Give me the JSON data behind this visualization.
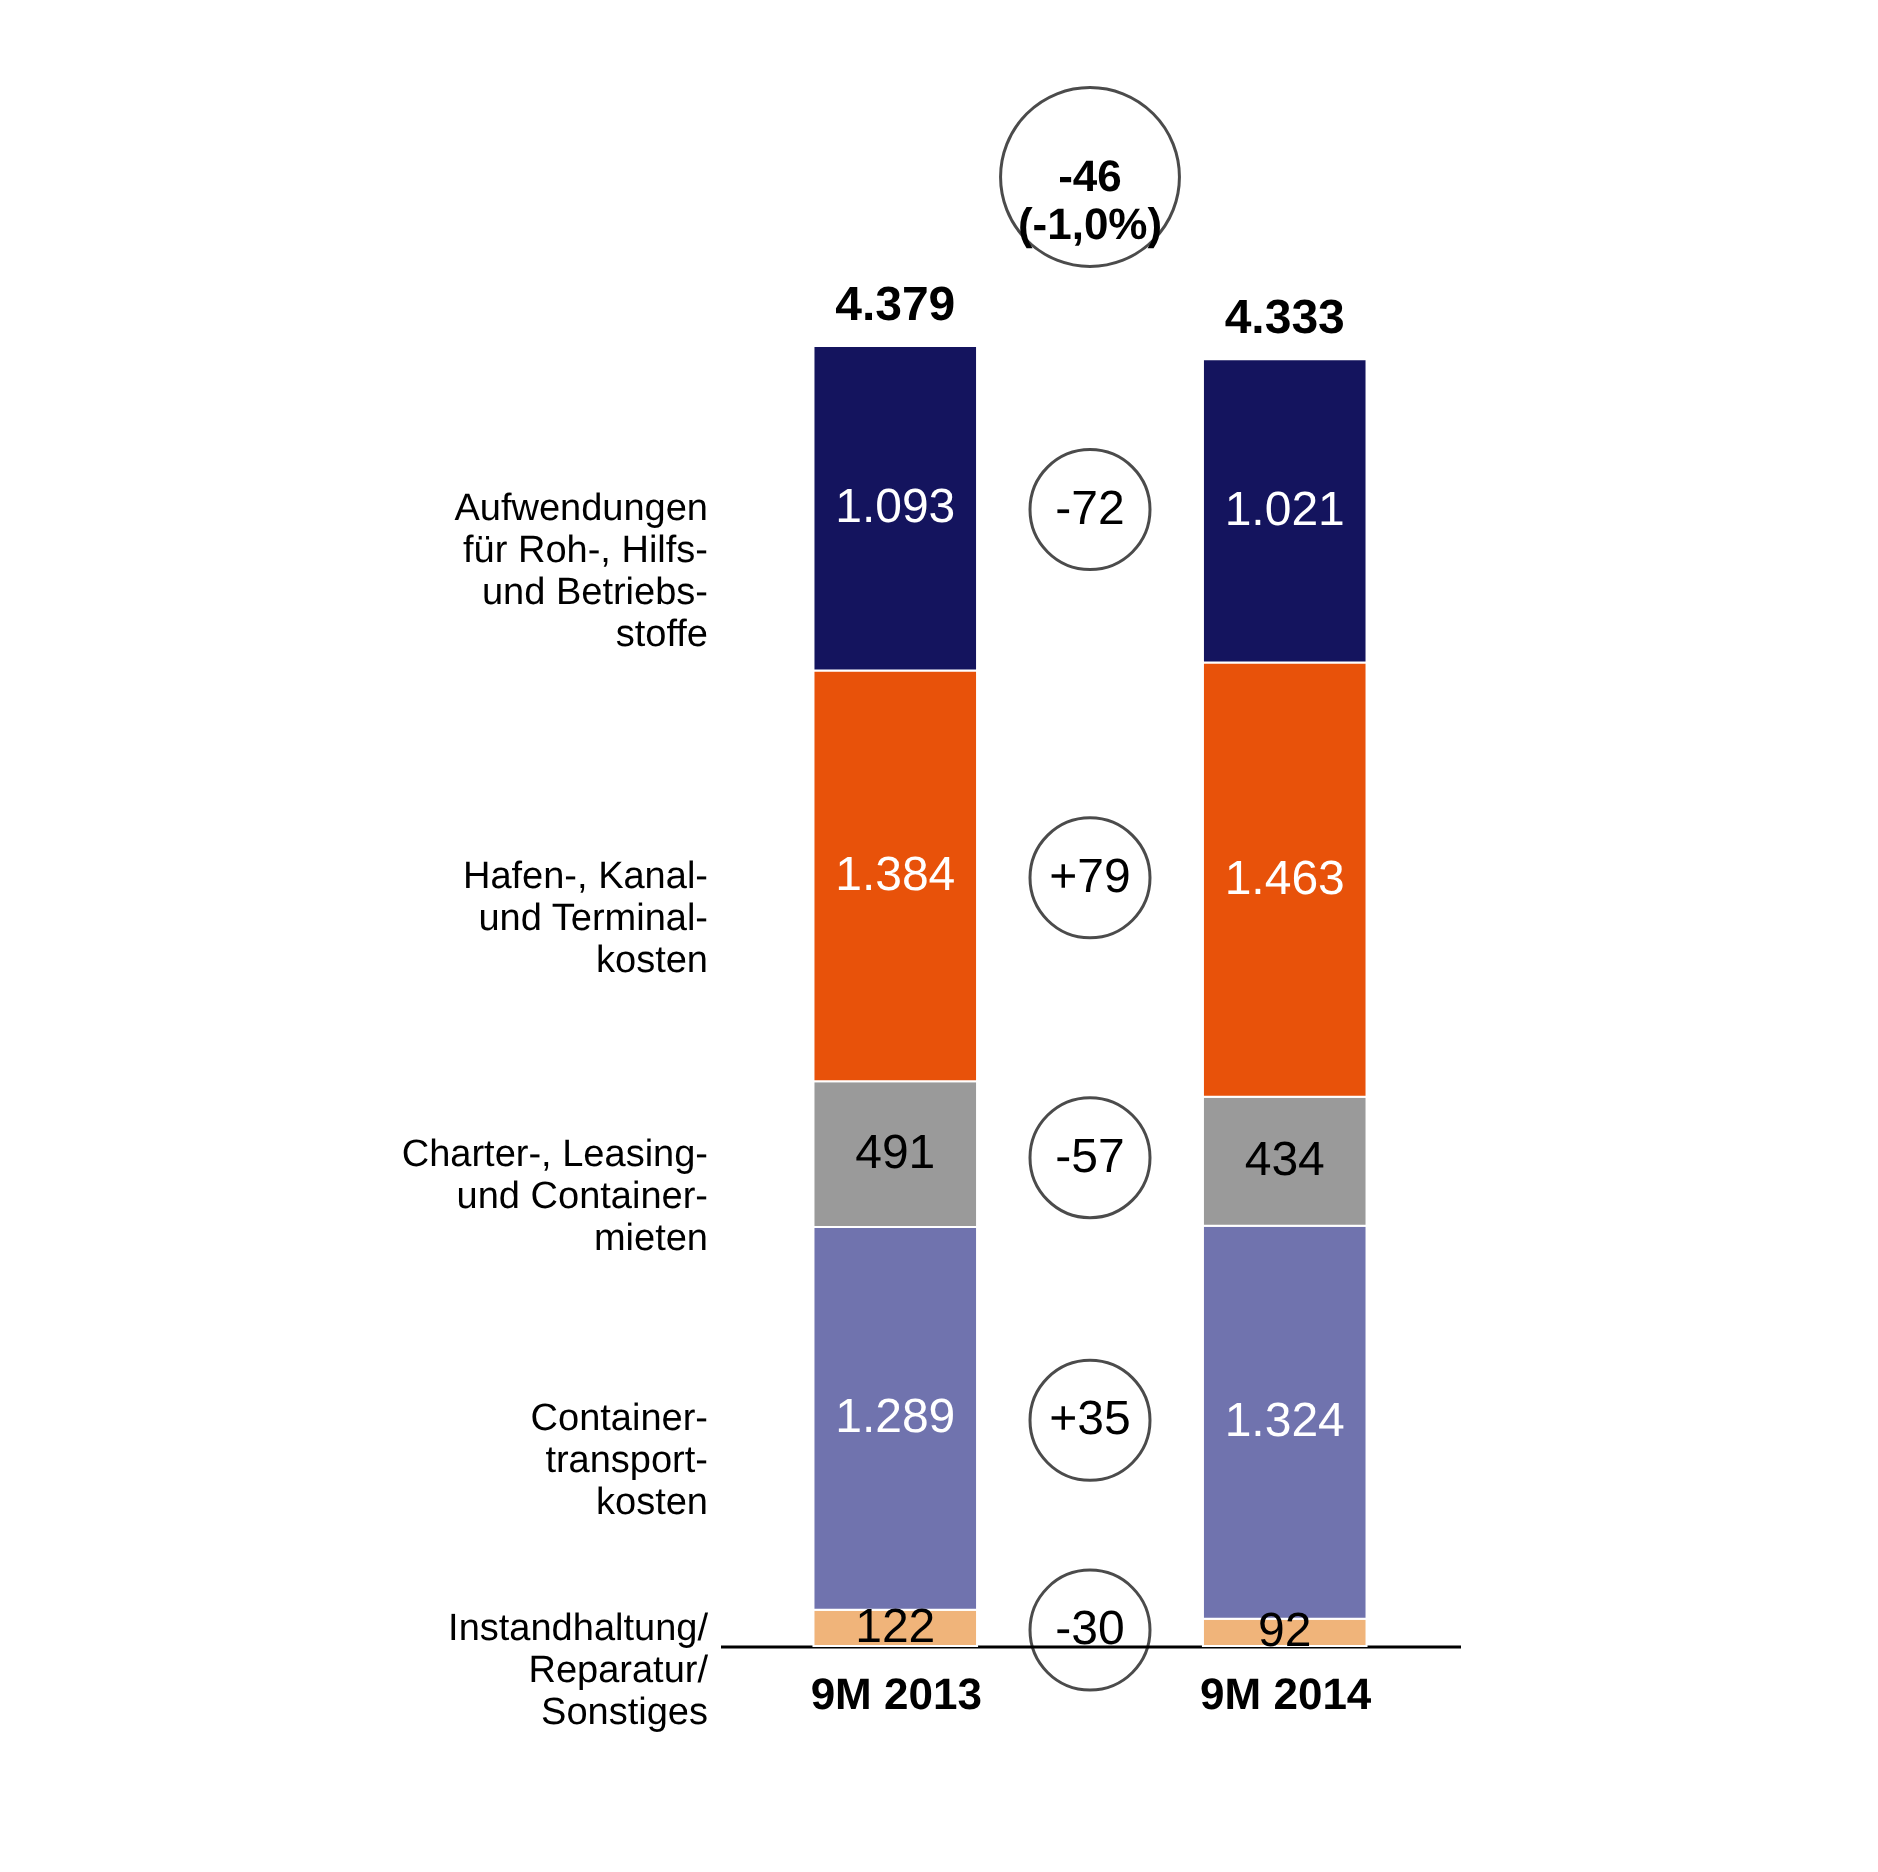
{
  "chart_data": {
    "type": "bar",
    "stacked": true,
    "categories": [
      "9M 2013",
      "9M 2014"
    ],
    "series": [
      {
        "name": "Instandhaltung/\nReparatur/\nSonstiges",
        "color": "#f0b47a",
        "values": [
          122,
          92
        ],
        "value_labels": [
          "122",
          "92"
        ]
      },
      {
        "name": "Container-\ntransport-\nkosten",
        "color": "#7073ae",
        "values": [
          1289,
          1324
        ],
        "value_labels": [
          "1.289",
          "1.324"
        ]
      },
      {
        "name": "Charter-, Leasing-\nund Container-\nmieten",
        "color": "#9a9a9a",
        "values": [
          491,
          434
        ],
        "value_labels": [
          "491",
          "434"
        ]
      },
      {
        "name": "Hafen-, Kanal-\nund Terminal-\nkosten",
        "color": "#e8520a",
        "values": [
          1384,
          1463
        ],
        "value_labels": [
          "1.384",
          "1.463"
        ]
      },
      {
        "name": "Aufwendungen\nfür Roh-, Hilfs-\nund Betriebs-\nstoffe",
        "color": "#14145e",
        "values": [
          1093,
          1021
        ],
        "value_labels": [
          "1.093",
          "1.021"
        ]
      }
    ],
    "totals": [
      "4.379",
      "4.333"
    ],
    "annotations": [
      "-30",
      "+35",
      "-57",
      "+79",
      "-72",
      "-46\n(-1,0%)"
    ]
  }
}
